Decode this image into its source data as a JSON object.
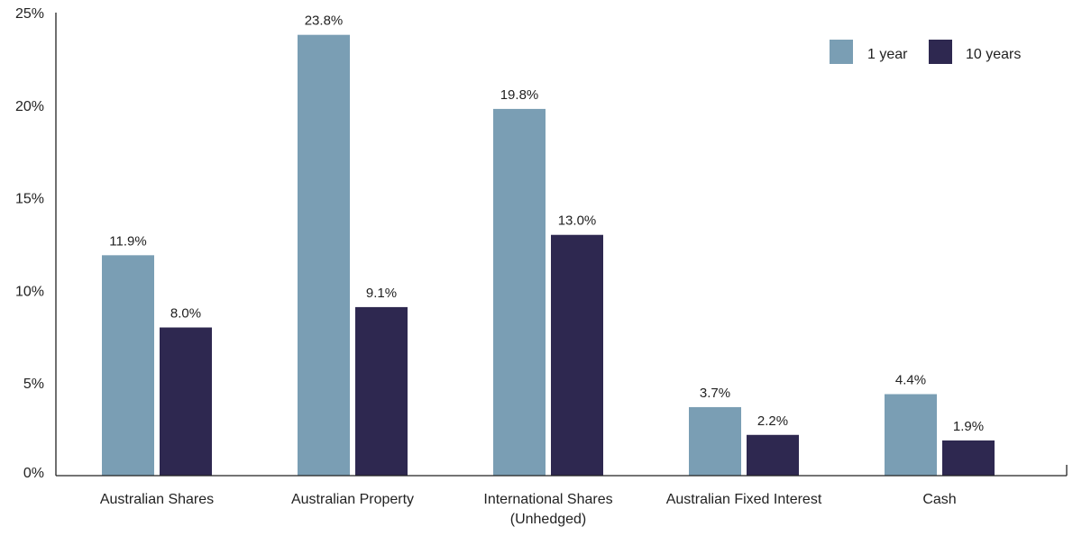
{
  "chart_data": {
    "type": "bar",
    "categories": [
      [
        "Australian Shares"
      ],
      [
        "Australian Property"
      ],
      [
        "International Shares",
        "(Unhedged)"
      ],
      [
        "Australian Fixed Interest"
      ],
      [
        "Cash"
      ]
    ],
    "series": [
      {
        "name": "1 year",
        "color": "#7a9eb4",
        "values": [
          11.9,
          23.8,
          19.8,
          3.7,
          4.4
        ],
        "labels": [
          "11.9%",
          "23.8%",
          "19.8%",
          "3.7%",
          "4.4%"
        ]
      },
      {
        "name": "10 years",
        "color": "#2e2850",
        "values": [
          8.0,
          9.1,
          13.0,
          2.2,
          1.9
        ],
        "labels": [
          "8.0%",
          "9.1%",
          "13.0%",
          "2.2%",
          "1.9%"
        ]
      }
    ],
    "y_ticks": [
      0,
      5,
      10,
      15,
      20,
      25
    ],
    "y_tick_labels": [
      "0%",
      "5%",
      "10%",
      "15%",
      "20%",
      "25%"
    ],
    "ylim": [
      0,
      25
    ],
    "title": "",
    "xlabel": "",
    "ylabel": "",
    "grid": false,
    "legend_position": "top-right"
  }
}
